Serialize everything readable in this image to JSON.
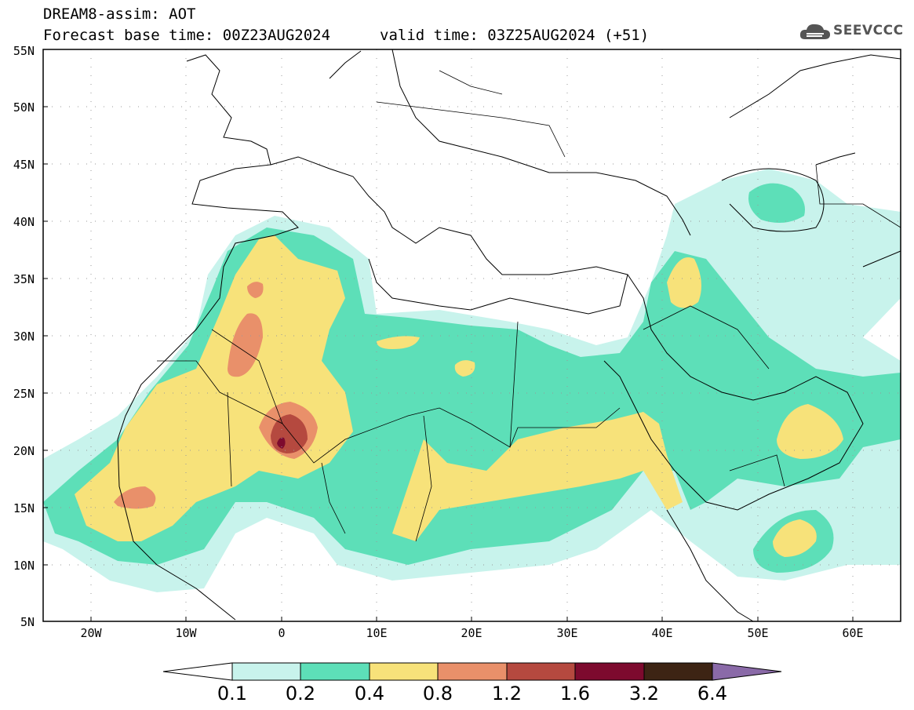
{
  "header": {
    "title": "DREAM8-assim: AOT",
    "base_time": "Forecast base time: 00Z23AUG2024",
    "valid_time": "valid time: 03Z25AUG2024 (+51)",
    "logo_text": "SEEVCCC"
  },
  "map": {
    "lat_labels": [
      "55N",
      "50N",
      "45N",
      "40N",
      "35N",
      "30N",
      "25N",
      "20N",
      "15N",
      "10N",
      "5N"
    ],
    "lon_labels": [
      "20W",
      "10W",
      "0",
      "10E",
      "20E",
      "30E",
      "40E",
      "50E",
      "60E"
    ],
    "lat_range": [
      5,
      55
    ],
    "lon_range": [
      -25,
      65
    ]
  },
  "legend": {
    "labels": [
      "0.1",
      "0.2",
      "0.4",
      "0.8",
      "1.2",
      "1.6",
      "3.2",
      "6.4"
    ],
    "colors": [
      "#ffffff",
      "#c8f3ec",
      "#5ddfb8",
      "#f7e27a",
      "#e9906a",
      "#b5493f",
      "#7d0a2e",
      "#3d2414",
      "#8a6aa8"
    ]
  }
}
